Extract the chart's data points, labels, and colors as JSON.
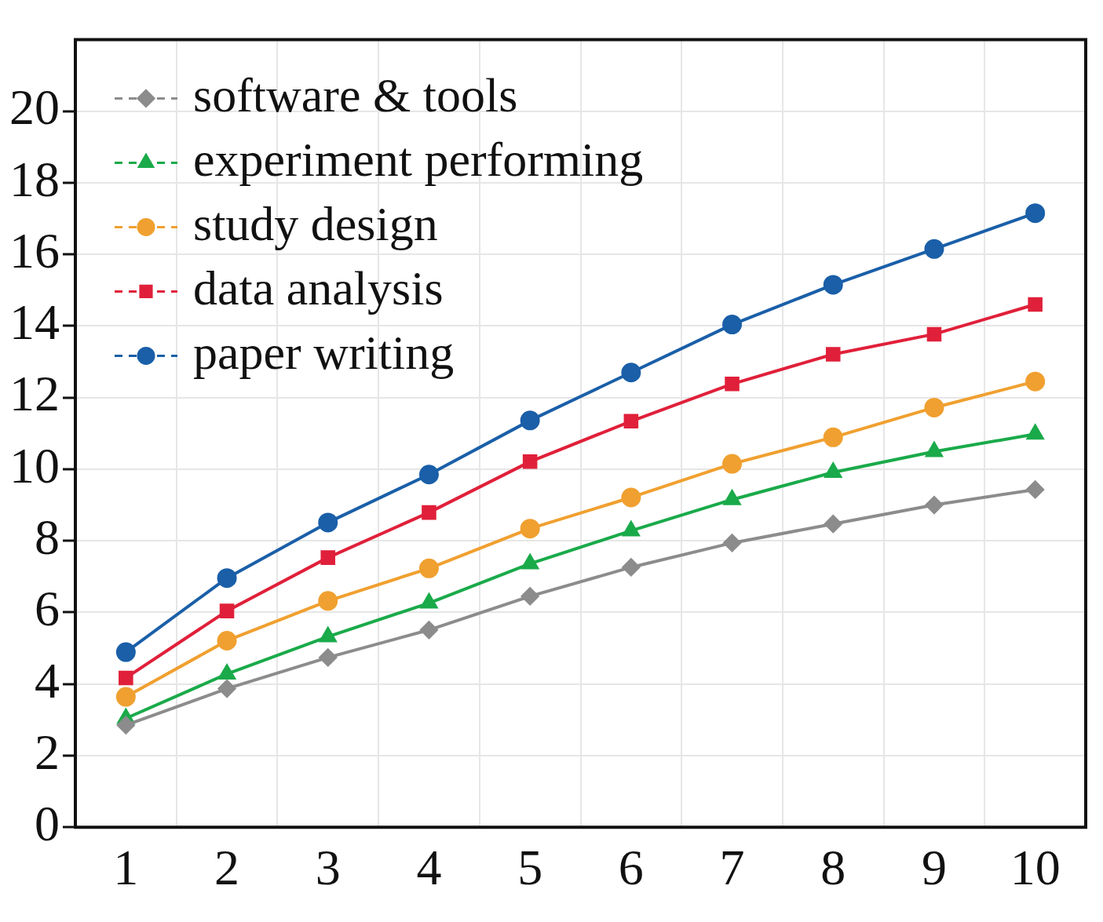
{
  "chart_data": {
    "type": "line",
    "categories": [
      "1",
      "2",
      "3",
      "4",
      "5",
      "6",
      "7",
      "8",
      "9",
      "10"
    ],
    "ylim": [
      0,
      22
    ],
    "yticks": [
      0,
      2,
      4,
      6,
      8,
      10,
      12,
      14,
      16,
      18,
      20
    ],
    "grid": true,
    "legend": "top left",
    "line_style": "solid",
    "series": [
      {
        "name": "software & tools",
        "color": "#8c8c8c",
        "marker": "diamond",
        "values": [
          2.85,
          3.87,
          4.74,
          5.51,
          6.45,
          7.26,
          7.94,
          8.47,
          9.0,
          9.43
        ]
      },
      {
        "name": "experiment performing",
        "color": "#1aaa4a",
        "marker": "triangle",
        "values": [
          3.04,
          4.28,
          5.32,
          6.26,
          7.36,
          8.28,
          9.15,
          9.91,
          10.49,
          10.98
        ]
      },
      {
        "name": "study design",
        "color": "#f0a030",
        "marker": "circle",
        "values": [
          3.64,
          5.21,
          6.32,
          7.23,
          8.34,
          9.21,
          10.15,
          10.89,
          11.72,
          12.45
        ]
      },
      {
        "name": "data analysis",
        "color": "#e0203a",
        "marker": "square",
        "values": [
          4.17,
          6.04,
          7.53,
          8.79,
          10.21,
          11.34,
          12.38,
          13.21,
          13.77,
          14.6
        ]
      },
      {
        "name": "paper writing",
        "color": "#1a5fa8",
        "marker": "circle",
        "values": [
          4.89,
          6.96,
          8.51,
          9.85,
          11.36,
          12.7,
          14.04,
          15.15,
          16.15,
          17.15
        ]
      }
    ]
  }
}
